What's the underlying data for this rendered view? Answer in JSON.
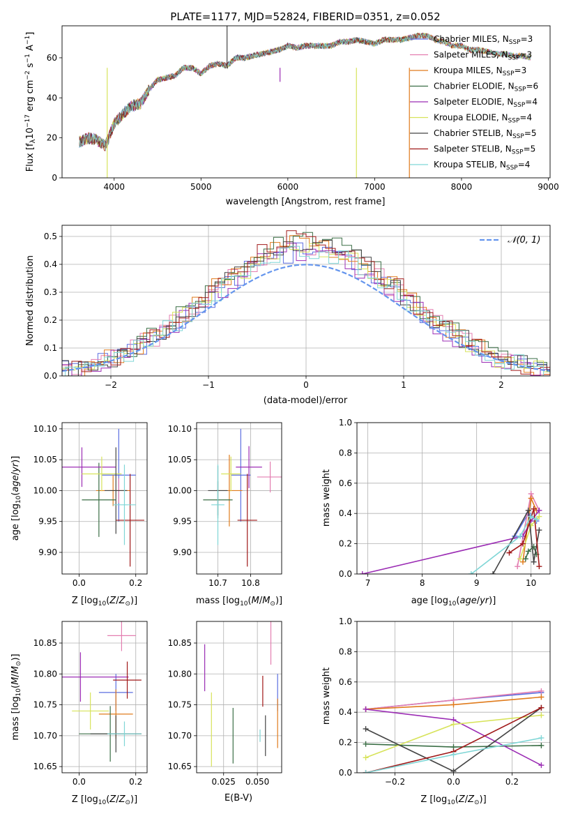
{
  "figure": {
    "title": "PLATE=1177, MJD=52824, FIBERID=0351, z=0.052"
  },
  "models": [
    {
      "name": "Chabrier MILES",
      "nssp": "3",
      "color": "#5b6ee1"
    },
    {
      "name": "Salpeter MILES",
      "nssp": "3",
      "color": "#e37db0"
    },
    {
      "name": "Kroupa MILES",
      "nssp": "3",
      "color": "#e07b1c"
    },
    {
      "name": "Chabrier ELODIE",
      "nssp": "6",
      "color": "#3a6e45"
    },
    {
      "name": "Salpeter ELODIE",
      "nssp": "4",
      "color": "#9b2cb4"
    },
    {
      "name": "Kroupa ELODIE",
      "nssp": "4",
      "color": "#d7e35a"
    },
    {
      "name": "Chabrier STELIB",
      "nssp": "5",
      "color": "#444444"
    },
    {
      "name": "Salpeter STELIB",
      "nssp": "5",
      "color": "#a01818"
    },
    {
      "name": "Kroupa STELIB",
      "nssp": "4",
      "color": "#7fd6d6"
    }
  ],
  "chart_data": [
    {
      "id": "spectrum",
      "type": "line",
      "title": "PLATE=1177, MJD=52824, FIBERID=0351, z=0.052",
      "xlabel": "wavelength [Angstrom, rest frame]",
      "ylabel": "Flux [f_λ 10^-17 erg cm^-2 s^-1 A^-1]",
      "xlim": [
        3400,
        9020
      ],
      "ylim": [
        0,
        76
      ],
      "xticks": [
        4000,
        5000,
        6000,
        7000,
        8000,
        9000
      ],
      "yticks": [
        0,
        20,
        40,
        60
      ],
      "legend": "top-right",
      "grid": false,
      "x": [
        3600,
        3700,
        3800,
        3900,
        4000,
        4100,
        4200,
        4300,
        4400,
        4500,
        4600,
        4700,
        4800,
        4900,
        5000,
        5100,
        5200,
        5300,
        5400,
        5500,
        5600,
        5700,
        5800,
        5900,
        6000,
        6100,
        6200,
        6300,
        6400,
        6500,
        6600,
        6700,
        6800,
        6900,
        7000,
        7100,
        7200,
        7300,
        7400,
        7500,
        7600,
        7700,
        7800,
        7900,
        8000,
        8100,
        8200,
        8300,
        8400,
        8500,
        8600,
        8700,
        8800
      ],
      "y_observed_approx": [
        18,
        20,
        19,
        16,
        27,
        32,
        36,
        37,
        44,
        49,
        50,
        51,
        55,
        55,
        52,
        56,
        57,
        56,
        60,
        60,
        61,
        62,
        63,
        64,
        66,
        65,
        66,
        66,
        66,
        66,
        68,
        68,
        69,
        68,
        67,
        69,
        69,
        69,
        70,
        71,
        71,
        69,
        68,
        66,
        66,
        64,
        64,
        63,
        62,
        62,
        61,
        61,
        60
      ]
    },
    {
      "id": "residuals",
      "type": "bar",
      "xlabel": "(data-model)/error",
      "ylabel": "Normed distribution",
      "xlim": [
        -2.5,
        2.5
      ],
      "ylim": [
        0,
        0.54
      ],
      "xticks": [
        -2,
        -1,
        0,
        1,
        2
      ],
      "yticks": [
        0,
        0.1,
        0.2,
        0.3,
        0.4,
        0.5
      ],
      "grid": true,
      "legend": "top-right",
      "reference_curve": "N(0,1)",
      "reference_label": "𝒩(0, 1)"
    },
    {
      "id": "age-vs-Z",
      "type": "scatter",
      "xlabel": "Z [log10(Z/Z⊙)]",
      "ylabel": "age [log10(age/yr)]",
      "xlim": [
        -0.06,
        0.24
      ],
      "ylim": [
        9.865,
        10.11
      ],
      "xticks": [
        0.0,
        0.2
      ],
      "yticks": [
        9.9,
        9.95,
        10.0,
        10.05,
        10.1
      ],
      "grid": true,
      "points": [
        {
          "x": 0.14,
          "y": 10.025,
          "xerr": 0.06,
          "yerr": 0.075
        },
        {
          "x": 0.14,
          "y": 10.0,
          "xerr": 0.03,
          "yerr": 0.02
        },
        {
          "x": 0.12,
          "y": 10.0,
          "xerr": 0.06,
          "yerr": 0.025
        },
        {
          "x": 0.07,
          "y": 9.985,
          "xerr": 0.06,
          "yerr": 0.06
        },
        {
          "x": 0.01,
          "y": 10.038,
          "xerr": 0.12,
          "yerr": 0.032
        },
        {
          "x": 0.08,
          "y": 10.027,
          "xerr": 0.07,
          "yerr": 0.028
        },
        {
          "x": 0.13,
          "y": 10.0,
          "xerr": 0.04,
          "yerr": 0.07
        },
        {
          "x": 0.18,
          "y": 9.952,
          "xerr": 0.05,
          "yerr": 0.075
        },
        {
          "x": 0.16,
          "y": 9.977,
          "xerr": 0.04,
          "yerr": 0.065
        }
      ]
    },
    {
      "id": "age-vs-mass",
      "type": "scatter",
      "xlabel": "mass [log10(M/M⊙)]",
      "ylim": [
        9.865,
        10.11
      ],
      "xlim": [
        10.635,
        10.895
      ],
      "xticks": [
        10.7,
        10.8
      ],
      "yticks": [
        9.9,
        9.95,
        10.0,
        10.05,
        10.1
      ],
      "grid": true,
      "points": [
        {
          "x": 10.77,
          "y": 10.025,
          "xerr": 0.03,
          "yerr": 0.075
        },
        {
          "x": 10.86,
          "y": 10.022,
          "xerr": 0.04,
          "yerr": 0.025
        },
        {
          "x": 10.735,
          "y": 10.0,
          "xerr": 0.04,
          "yerr": 0.058
        },
        {
          "x": 10.7,
          "y": 9.985,
          "xerr": 0.045,
          "yerr": 0.03
        },
        {
          "x": 10.795,
          "y": 10.038,
          "xerr": 0.04,
          "yerr": 0.034
        },
        {
          "x": 10.74,
          "y": 10.027,
          "xerr": 0.03,
          "yerr": 0.028
        },
        {
          "x": 10.7,
          "y": 10.0,
          "xerr": 0.03,
          "yerr": 0.04
        },
        {
          "x": 10.79,
          "y": 9.952,
          "xerr": 0.03,
          "yerr": 0.075
        },
        {
          "x": 10.7,
          "y": 9.977,
          "xerr": 0.02,
          "yerr": 0.065
        }
      ]
    },
    {
      "id": "mass-weight-vs-age",
      "type": "line",
      "xlabel": "age [log10(age/yr)]",
      "ylabel": "mass weight",
      "xlim": [
        6.8,
        10.35
      ],
      "ylim": [
        0,
        1.0
      ],
      "xticks": [
        7,
        8,
        9,
        10
      ],
      "yticks": [
        0.0,
        0.2,
        0.4,
        0.6,
        0.8,
        1.0
      ],
      "grid": true,
      "series": [
        {
          "x": [
            9.7,
            9.95,
            10.1
          ],
          "y": [
            0.25,
            0.4,
            0.35
          ]
        },
        {
          "x": [
            9.75,
            10.0,
            10.15
          ],
          "y": [
            0.05,
            0.53,
            0.42
          ]
        },
        {
          "x": [
            9.85,
            10.0,
            10.1
          ],
          "y": [
            0.08,
            0.5,
            0.42
          ]
        },
        {
          "x": [
            9.9,
            9.95,
            10.05,
            10.1
          ],
          "y": [
            0.1,
            0.15,
            0.18,
            0.13
          ]
        },
        {
          "x": [
            6.9,
            9.85,
            10.0,
            10.15
          ],
          "y": [
            0.0,
            0.25,
            0.35,
            0.42
          ]
        },
        {
          "x": [
            9.8,
            10.0,
            10.15
          ],
          "y": [
            0.1,
            0.32,
            0.38
          ]
        },
        {
          "x": [
            9.3,
            9.95,
            10.05,
            10.15
          ],
          "y": [
            0.0,
            0.42,
            0.08,
            0.29
          ]
        },
        {
          "x": [
            9.6,
            9.85,
            10.05,
            10.15
          ],
          "y": [
            0.14,
            0.2,
            0.43,
            0.05
          ]
        },
        {
          "x": [
            8.9,
            9.8,
            10.0,
            10.1
          ],
          "y": [
            0.0,
            0.25,
            0.38,
            0.36
          ]
        }
      ]
    },
    {
      "id": "mass-vs-Z",
      "type": "scatter",
      "xlabel": "Z [log10(Z/Z⊙)]",
      "ylabel": "mass [log10(M/M⊙)]",
      "xlim": [
        -0.06,
        0.24
      ],
      "ylim": [
        10.64,
        10.885
      ],
      "xticks": [
        0.0,
        0.2
      ],
      "yticks": [
        10.65,
        10.7,
        10.75,
        10.8,
        10.85
      ],
      "grid": true,
      "points": [
        {
          "x": 0.13,
          "y": 10.77,
          "xerr": 0.06,
          "yerr": 0.03
        },
        {
          "x": 0.15,
          "y": 10.862,
          "xerr": 0.05,
          "yerr": 0.025
        },
        {
          "x": 0.13,
          "y": 10.735,
          "xerr": 0.06,
          "yerr": 0.04
        },
        {
          "x": 0.11,
          "y": 10.703,
          "xerr": 0.11,
          "yerr": 0.045
        },
        {
          "x": 0.005,
          "y": 10.795,
          "xerr": 0.17,
          "yerr": 0.04
        },
        {
          "x": 0.04,
          "y": 10.74,
          "xerr": 0.065,
          "yerr": 0.03
        },
        {
          "x": 0.13,
          "y": 10.703,
          "xerr": 0.09,
          "yerr": 0.03
        },
        {
          "x": 0.17,
          "y": 10.79,
          "xerr": 0.05,
          "yerr": 0.03
        },
        {
          "x": 0.16,
          "y": 10.703,
          "xerr": 0.06,
          "yerr": 0.02
        }
      ]
    },
    {
      "id": "mass-vs-ebv",
      "type": "scatter",
      "xlabel": "E(B-V)",
      "xlim": [
        0.005,
        0.068
      ],
      "ylim": [
        10.64,
        10.885
      ],
      "xticks": [
        0.025,
        0.05
      ],
      "yticks": [
        10.65,
        10.7,
        10.75,
        10.8,
        10.85
      ],
      "grid": true,
      "points": [
        {
          "x": 0.065,
          "y": 10.77,
          "yerr": 0.03
        },
        {
          "x": 0.06,
          "y": 10.85,
          "yerr": 0.035
        },
        {
          "x": 0.065,
          "y": 10.72,
          "yerr": 0.04
        },
        {
          "x": 0.032,
          "y": 10.7,
          "yerr": 0.045
        },
        {
          "x": 0.011,
          "y": 10.81,
          "yerr": 0.038
        },
        {
          "x": 0.016,
          "y": 10.71,
          "yerr": 0.06
        },
        {
          "x": 0.056,
          "y": 10.7,
          "yerr": 0.033
        },
        {
          "x": 0.054,
          "y": 10.772,
          "yerr": 0.025
        },
        {
          "x": 0.052,
          "y": 10.7,
          "yerr": 0.01
        }
      ]
    },
    {
      "id": "mass-weight-vs-Z",
      "type": "line",
      "xlabel": "Z [log10(Z/Z⊙)]",
      "ylabel": "mass weight",
      "xlim": [
        -0.33,
        0.33
      ],
      "ylim": [
        0,
        1.0
      ],
      "xticks": [
        -0.2,
        0.0,
        0.2
      ],
      "yticks": [
        0.0,
        0.2,
        0.4,
        0.6,
        0.8,
        1.0
      ],
      "grid": true,
      "series": [
        {
          "x": [
            -0.3,
            0.0,
            0.3
          ],
          "y": [
            0.42,
            0.48,
            0.53
          ]
        },
        {
          "x": [
            -0.3,
            0.0,
            0.3
          ],
          "y": [
            0.42,
            0.48,
            0.54
          ]
        },
        {
          "x": [
            -0.3,
            0.0,
            0.3
          ],
          "y": [
            0.42,
            0.45,
            0.5
          ]
        },
        {
          "x": [
            -0.3,
            0.0,
            0.3
          ],
          "y": [
            0.19,
            0.17,
            0.18
          ]
        },
        {
          "x": [
            -0.3,
            0.0,
            0.3
          ],
          "y": [
            0.42,
            0.35,
            0.05
          ]
        },
        {
          "x": [
            -0.3,
            0.0,
            0.3
          ],
          "y": [
            0.1,
            0.32,
            0.38
          ]
        },
        {
          "x": [
            -0.3,
            0.0,
            0.3
          ],
          "y": [
            0.29,
            0.01,
            0.43
          ]
        },
        {
          "x": [
            -0.3,
            0.0,
            0.3
          ],
          "y": [
            0.0,
            0.14,
            0.43
          ]
        },
        {
          "x": [
            -0.3,
            0.0,
            0.3
          ],
          "y": [
            0.0,
            0.12,
            0.23
          ]
        }
      ]
    }
  ]
}
